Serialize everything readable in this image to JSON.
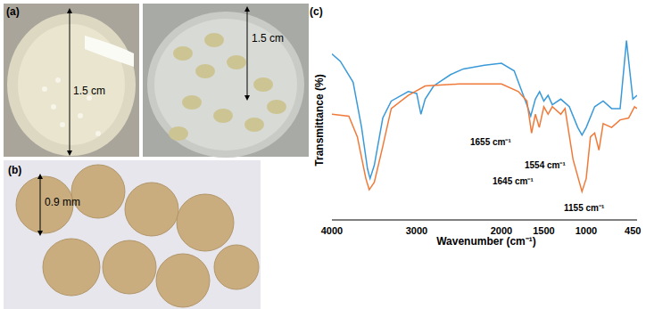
{
  "panels": {
    "a": {
      "label": "(a)",
      "texts": [
        "1.5 cm",
        "1.5 cm"
      ]
    },
    "b": {
      "label": "(b)",
      "texts": [
        "0.9 mm"
      ]
    }
  },
  "chart_data": {
    "label": "(c)",
    "type": "line",
    "x_label": "Wavenumber (cm⁻¹)",
    "y_label": "Transmittance (%)",
    "xlim": [
      4000,
      400
    ],
    "xticks": [
      4000,
      3000,
      2000,
      1500,
      1000,
      450
    ],
    "ylim": [
      0,
      100
    ],
    "tick_labels": "x",
    "annotations": [
      "1655 cm⁻¹",
      "1554 cm⁻¹",
      "1645 cm⁻¹",
      "1155 cm⁻¹"
    ],
    "series": [
      {
        "color": "#3a9ad9",
        "x": [
          4000,
          3900,
          3750,
          3650,
          3580,
          3550,
          3500,
          3400,
          3300,
          3100,
          3000,
          2950,
          2900,
          2800,
          2600,
          2450,
          2200,
          2000,
          1850,
          1700,
          1655,
          1600,
          1550,
          1500,
          1450,
          1400,
          1300,
          1200,
          1100,
          1050,
          1000,
          900,
          800,
          700,
          600,
          525,
          450,
          400
        ],
        "values": [
          88,
          84,
          73,
          49,
          27,
          22,
          29,
          54,
          63,
          68,
          67,
          56,
          64,
          71,
          77,
          80,
          82,
          83,
          79,
          61,
          55,
          64,
          68,
          63,
          66,
          61,
          64,
          60,
          49,
          45,
          49,
          60,
          63,
          59,
          59,
          95,
          64,
          66
        ]
      },
      {
        "color": "#f07a3a",
        "x": [
          4000,
          3800,
          3700,
          3600,
          3560,
          3500,
          3400,
          3300,
          3100,
          2900,
          2500,
          2000,
          1800,
          1700,
          1645,
          1600,
          1554,
          1500,
          1450,
          1400,
          1300,
          1250,
          1155,
          1050,
          1000,
          950,
          900,
          850,
          800,
          700,
          600,
          500,
          430,
          400
        ],
        "values": [
          56,
          55,
          44,
          22,
          16,
          20,
          39,
          59,
          66,
          71,
          72,
          72,
          68,
          63,
          46,
          56,
          49,
          60,
          56,
          60,
          56,
          59,
          32,
          15,
          22,
          44,
          46,
          37,
          51,
          49,
          53,
          54,
          60,
          59
        ]
      }
    ]
  }
}
